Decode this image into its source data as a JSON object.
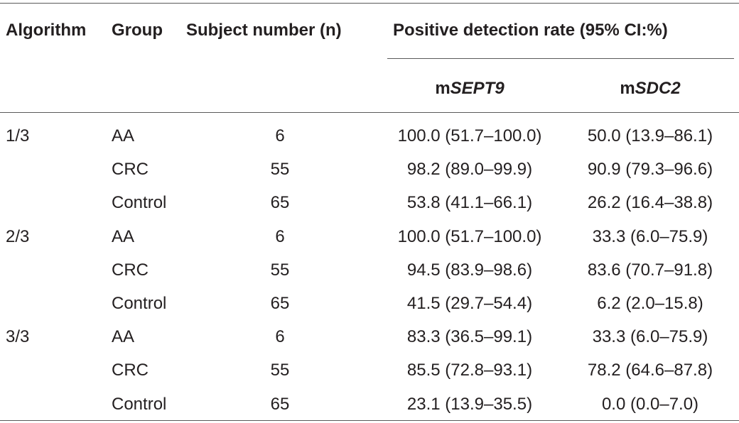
{
  "table": {
    "headers": {
      "algorithm": "Algorithm",
      "group": "Group",
      "subject_number": "Subject number (n)",
      "positive_rate": "Positive detection rate (95% CI:%)",
      "msept9_prefix": "m",
      "msept9_gene": "SEPT9",
      "msdc2_prefix": "m",
      "msdc2_gene": "SDC2"
    },
    "rows": [
      {
        "algorithm": "1/3",
        "group": "AA",
        "n": "6",
        "msept9": "100.0 (51.7–100.0)",
        "msdc2": "50.0 (13.9–86.1)"
      },
      {
        "algorithm": "",
        "group": "CRC",
        "n": "55",
        "msept9": "98.2 (89.0–99.9)",
        "msdc2": "90.9 (79.3–96.6)"
      },
      {
        "algorithm": "",
        "group": "Control",
        "n": "65",
        "msept9": "53.8 (41.1–66.1)",
        "msdc2": "26.2 (16.4–38.8)"
      },
      {
        "algorithm": "2/3",
        "group": "AA",
        "n": "6",
        "msept9": "100.0 (51.7–100.0)",
        "msdc2": "33.3 (6.0–75.9)"
      },
      {
        "algorithm": "",
        "group": "CRC",
        "n": "55",
        "msept9": "94.5 (83.9–98.6)",
        "msdc2": "83.6 (70.7–91.8)"
      },
      {
        "algorithm": "",
        "group": "Control",
        "n": "65",
        "msept9": "41.5 (29.7–54.4)",
        "msdc2": "6.2 (2.0–15.8)"
      },
      {
        "algorithm": "3/3",
        "group": "AA",
        "n": "6",
        "msept9": "83.3 (36.5–99.1)",
        "msdc2": "33.3 (6.0–75.9)"
      },
      {
        "algorithm": "",
        "group": "CRC",
        "n": "55",
        "msept9": "85.5 (72.8–93.1)",
        "msdc2": "78.2 (64.6–87.8)"
      },
      {
        "algorithm": "",
        "group": "Control",
        "n": "65",
        "msept9": "23.1 (13.9–35.5)",
        "msdc2": "0.0 (0.0–7.0)"
      }
    ]
  }
}
